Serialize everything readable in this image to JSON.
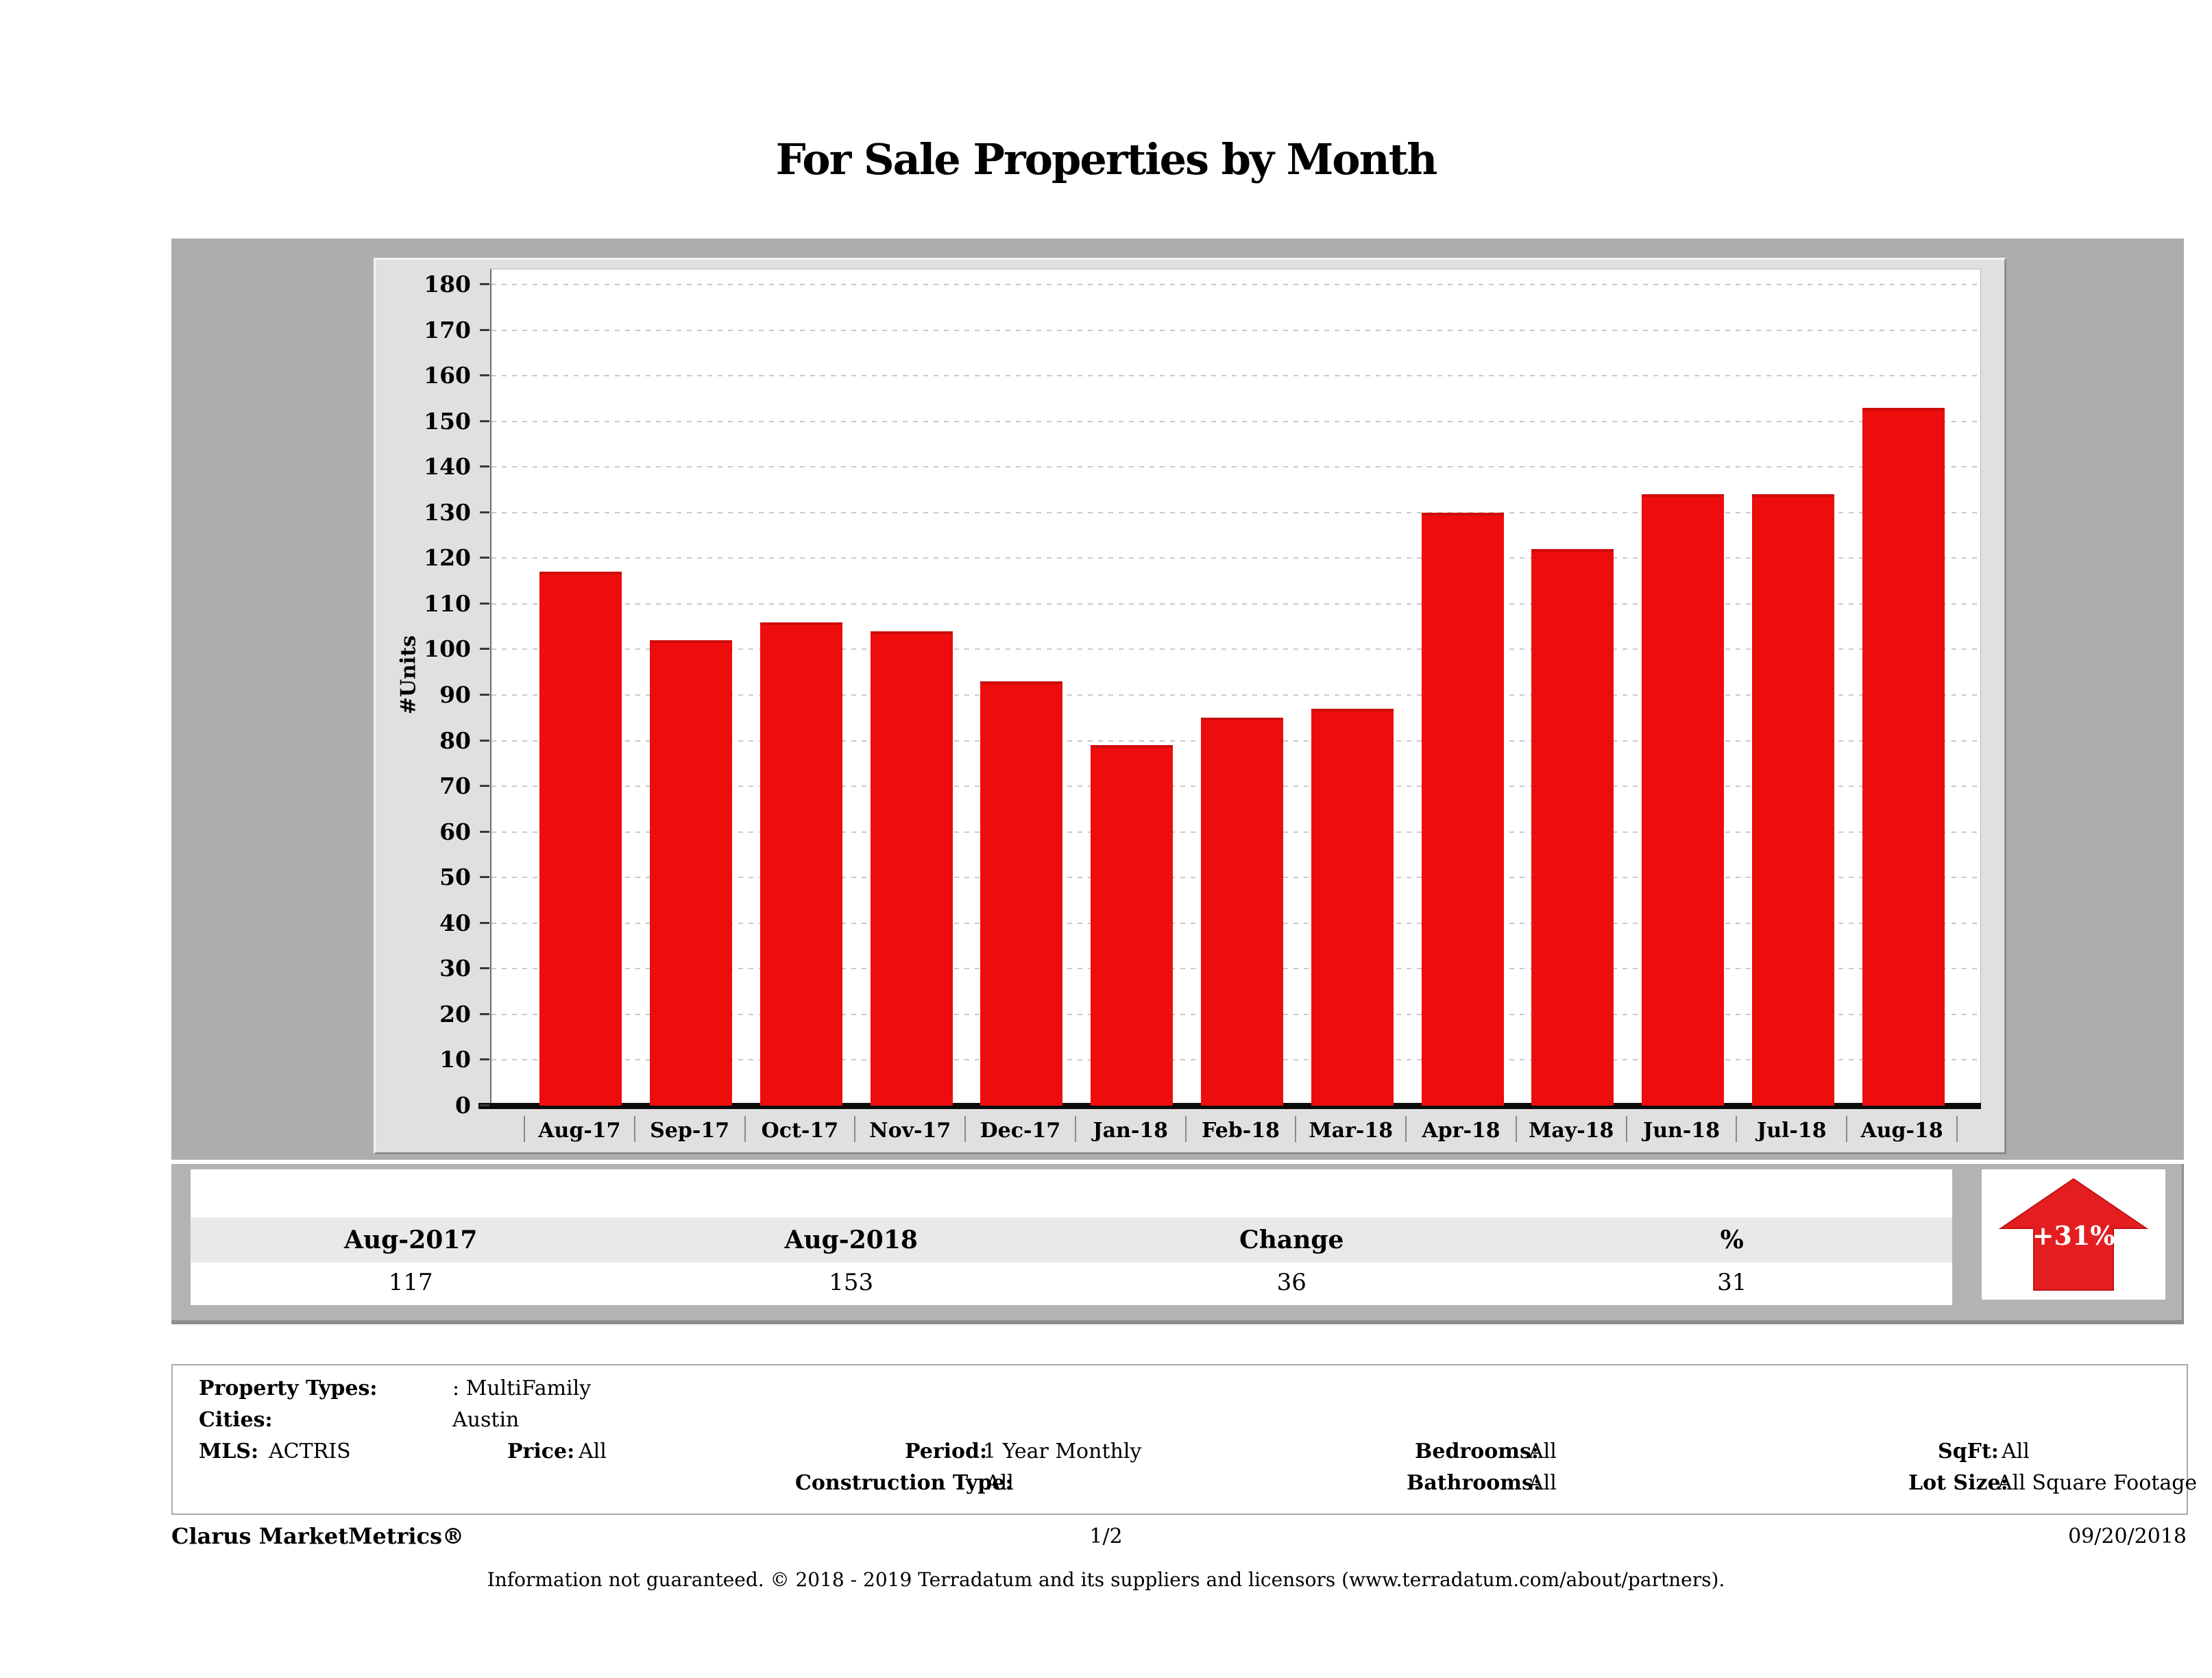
{
  "page": {
    "title": "For Sale Properties by Month"
  },
  "chart_data": {
    "type": "bar",
    "title": "For Sale Properties by Month",
    "categories": [
      "Aug-17",
      "Sep-17",
      "Oct-17",
      "Nov-17",
      "Dec-17",
      "Jan-18",
      "Feb-18",
      "Mar-18",
      "Apr-18",
      "May-18",
      "Jun-18",
      "Jul-18",
      "Aug-18"
    ],
    "values": [
      117,
      102,
      106,
      104,
      93,
      79,
      85,
      87,
      130,
      122,
      134,
      134,
      153
    ],
    "xlabel": "",
    "ylabel": "#Units",
    "ylim": [
      0,
      180
    ],
    "ytick_step": 10,
    "grid": true,
    "legend": false,
    "bar_color": "#ee0d0d"
  },
  "summary_table": {
    "columns": [
      "Aug-2017",
      "Aug-2018",
      "Change",
      "%"
    ],
    "values": [
      "117",
      "153",
      "36",
      "31"
    ],
    "trend_arrow": {
      "label": "+31%",
      "direction": "up",
      "color": "#e41e20"
    }
  },
  "filters": {
    "property_types_label": "Property Types:",
    "property_types_value": ": MultiFamily",
    "cities_label": "Cities:",
    "cities_value": "Austin",
    "mls_label": "MLS:",
    "mls_value": "ACTRIS",
    "price_label": "Price:",
    "price_value": "All",
    "period_label": "Period:",
    "period_value": "1 Year Monthly",
    "construction_label": "Construction Type:",
    "construction_value": "All",
    "bedrooms_label": "Bedrooms:",
    "bedrooms_value": "All",
    "bathrooms_label": "Bathrooms:",
    "bathrooms_value": "All",
    "sqft_label": "SqFt:",
    "sqft_value": "All",
    "lot_size_label": "Lot Size:",
    "lot_size_value": "All Square Footage"
  },
  "footer": {
    "brand": "Clarus MarketMetrics®",
    "page_number": "1/2",
    "date": "09/20/2018",
    "disclaimer": "Information not guaranteed. © 2018 - 2019 Terradatum and its suppliers and licensors (www.terradatum.com/about/partners)."
  }
}
